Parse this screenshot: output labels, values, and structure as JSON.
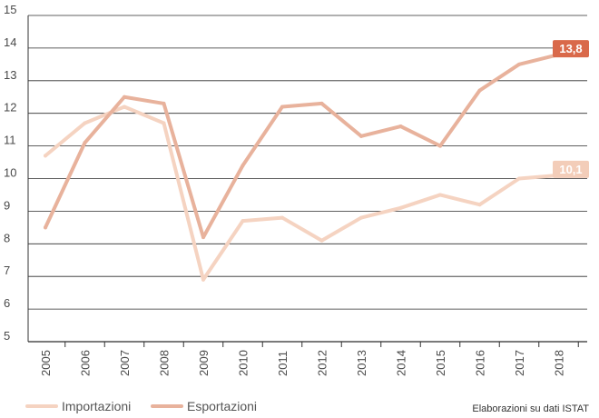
{
  "colors": {
    "importazioni": "#f5d3c1",
    "esportazioni": "#e8b29c",
    "end_label_esportazioni": "#d9694a",
    "end_label_importazioni": "#f3cdb9",
    "grid": "#2b2b2b",
    "axis": "#333333"
  },
  "chart_data": {
    "type": "line",
    "x": [
      "2005",
      "2006",
      "2007",
      "2008",
      "2009",
      "2010",
      "2011",
      "2012",
      "2013",
      "2014",
      "2015",
      "2016",
      "2017",
      "2018"
    ],
    "ylim": [
      5,
      15
    ],
    "yticks": [
      5,
      6,
      7,
      8,
      9,
      10,
      11,
      12,
      13,
      14,
      15
    ],
    "ytick_labels": [
      "5",
      "6",
      "7",
      "8",
      "9",
      "10",
      "11",
      "12",
      "13",
      "14",
      "15"
    ],
    "grid": true,
    "legend_position": "bottom-left",
    "series": [
      {
        "name": "Importazioni",
        "key": "importazioni",
        "values": [
          10.7,
          11.7,
          12.2,
          11.7,
          6.9,
          8.7,
          8.8,
          8.1,
          8.8,
          9.1,
          9.5,
          9.2,
          10.0,
          10.1
        ],
        "end_label": "10,1"
      },
      {
        "name": "Esportazioni",
        "key": "esportazioni",
        "values": [
          8.5,
          11.1,
          12.5,
          12.3,
          8.2,
          10.4,
          12.2,
          12.3,
          11.3,
          11.6,
          11.0,
          12.7,
          13.5,
          13.8
        ],
        "end_label": "13,8"
      }
    ],
    "annotation": "Elaborazioni su dati ISTAT"
  }
}
